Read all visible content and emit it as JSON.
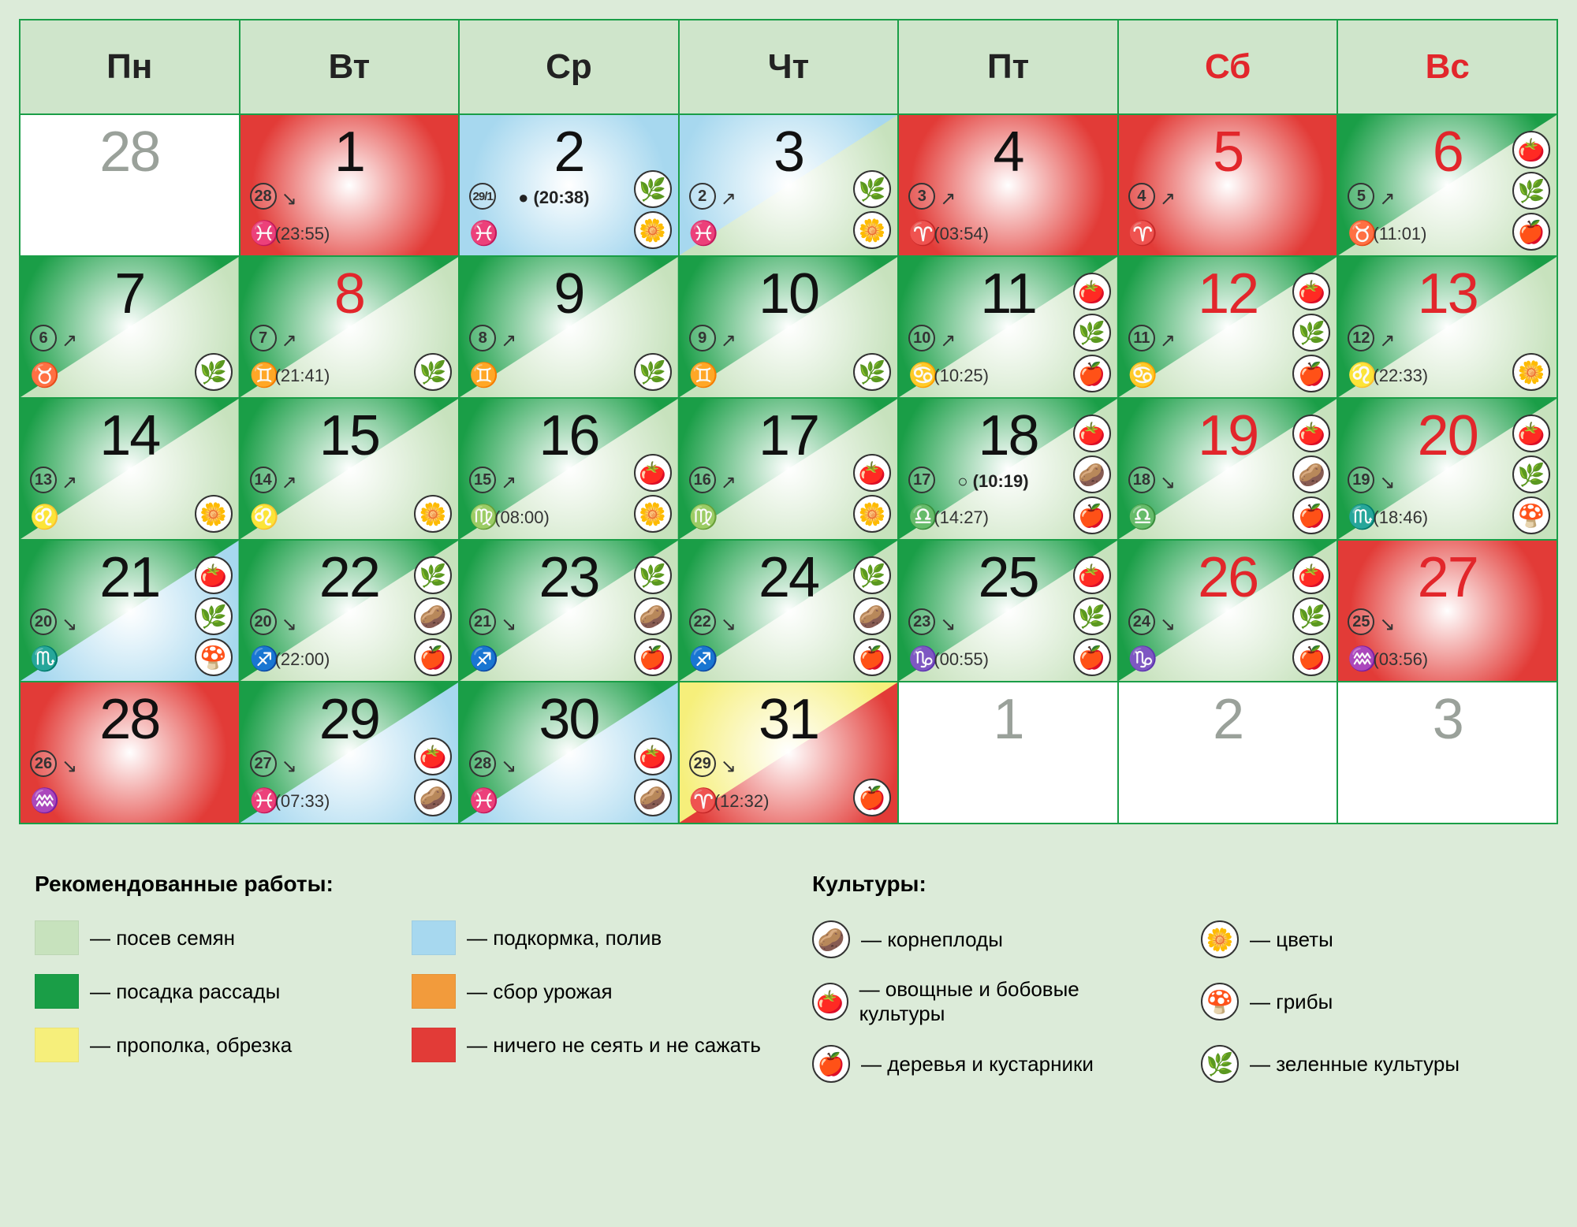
{
  "colors": {
    "border": "#1a9e47",
    "header_bg": "#cfe5cb",
    "weekend": "#e2262b",
    "bg_page": "#dcebd9",
    "seed": "#c7e2bd",
    "seedling": "#1a9e47",
    "weed": "#f6ef7b",
    "feed": "#a7d8ef",
    "harvest": "#f29b3c",
    "noplant": "#e23b37"
  },
  "weekdays": [
    {
      "label": "Пн",
      "weekend": false
    },
    {
      "label": "Вт",
      "weekend": false
    },
    {
      "label": "Ср",
      "weekend": false
    },
    {
      "label": "Чт",
      "weekend": false
    },
    {
      "label": "Пт",
      "weekend": false
    },
    {
      "label": "Сб",
      "weekend": true
    },
    {
      "label": "Вс",
      "weekend": true
    }
  ],
  "crops": {
    "root": "🥔",
    "veg": "🍅",
    "tree": "🍎",
    "flower": "🌼",
    "mushroom": "🍄",
    "greens": "🌿"
  },
  "zodiac_glyphs": {
    "aries": "♈",
    "taurus": "♉",
    "gemini": "♊",
    "cancer": "♋",
    "leo": "♌",
    "virgo": "♍",
    "libra": "♎",
    "scorpio": "♏",
    "sagittarius": "♐",
    "capricorn": "♑",
    "aquarius": "♒",
    "pisces": "♓"
  },
  "cells": [
    {
      "day": "28",
      "grey": true,
      "blank": true
    },
    {
      "day": "1",
      "bg_upper": "noplant",
      "bg_lower": "noplant",
      "radial": true,
      "moonday": "28",
      "arrow": "↘",
      "zodiac": "pisces",
      "ztime": "(23:55)"
    },
    {
      "day": "2",
      "bg_upper": "feed",
      "bg_lower": "feed",
      "radial": true,
      "moonday": "29/1",
      "moonsmall": true,
      "arrow": "",
      "phase": "● (20:38)",
      "zodiac": "pisces",
      "icons": [
        "greens",
        "flower"
      ]
    },
    {
      "day": "3",
      "bg_upper": "feed",
      "bg_lower": "seed",
      "moonday": "2",
      "arrow": "↗",
      "zodiac": "pisces",
      "icons": [
        "greens",
        "flower"
      ]
    },
    {
      "day": "4",
      "bg_upper": "noplant",
      "bg_lower": "noplant",
      "radial": true,
      "moonday": "3",
      "arrow": "↗",
      "zodiac": "aries",
      "ztime": "(03:54)"
    },
    {
      "day": "5",
      "red": true,
      "bg_upper": "noplant",
      "bg_lower": "noplant",
      "radial": true,
      "moonday": "4",
      "arrow": "↗",
      "zodiac": "aries"
    },
    {
      "day": "6",
      "red": true,
      "bg_upper": "seedling",
      "bg_lower": "seed",
      "moonday": "5",
      "arrow": "↗",
      "zodiac": "taurus",
      "ztime": "(11:01)",
      "icons": [
        "veg",
        "greens",
        "tree"
      ]
    },
    {
      "day": "7",
      "bg_upper": "seedling",
      "bg_lower": "seed",
      "moonday": "6",
      "arrow": "↗",
      "zodiac": "taurus",
      "icons": [
        "greens"
      ]
    },
    {
      "day": "8",
      "red": true,
      "bg_upper": "seedling",
      "bg_lower": "seed",
      "moonday": "7",
      "arrow": "↗",
      "zodiac": "gemini",
      "ztime": "(21:41)",
      "icons": [
        "greens"
      ]
    },
    {
      "day": "9",
      "bg_upper": "seedling",
      "bg_lower": "seed",
      "moonday": "8",
      "arrow": "↗",
      "zodiac": "gemini",
      "icons": [
        "greens"
      ]
    },
    {
      "day": "10",
      "bg_upper": "seedling",
      "bg_lower": "seed",
      "moonday": "9",
      "arrow": "↗",
      "zodiac": "gemini",
      "icons": [
        "greens"
      ]
    },
    {
      "day": "11",
      "bg_upper": "seedling",
      "bg_lower": "seed",
      "moonday": "10",
      "arrow": "↗",
      "zodiac": "cancer",
      "ztime": "(10:25)",
      "icons": [
        "veg",
        "greens",
        "tree"
      ]
    },
    {
      "day": "12",
      "red": true,
      "bg_upper": "seedling",
      "bg_lower": "seed",
      "moonday": "11",
      "arrow": "↗",
      "zodiac": "cancer",
      "icons": [
        "veg",
        "greens",
        "tree"
      ]
    },
    {
      "day": "13",
      "red": true,
      "bg_upper": "seedling",
      "bg_lower": "seed",
      "moonday": "12",
      "arrow": "↗",
      "zodiac": "leo",
      "ztime": "(22:33)",
      "icons": [
        "flower"
      ]
    },
    {
      "day": "14",
      "bg_upper": "seedling",
      "bg_lower": "seed",
      "moonday": "13",
      "arrow": "↗",
      "zodiac": "leo",
      "icons": [
        "flower"
      ]
    },
    {
      "day": "15",
      "bg_upper": "seedling",
      "bg_lower": "seed",
      "moonday": "14",
      "arrow": "↗",
      "zodiac": "leo",
      "icons": [
        "flower"
      ]
    },
    {
      "day": "16",
      "bg_upper": "seedling",
      "bg_lower": "seed",
      "moonday": "15",
      "arrow": "↗",
      "zodiac": "virgo",
      "ztime": "(08:00)",
      "icons": [
        "veg",
        "flower"
      ]
    },
    {
      "day": "17",
      "bg_upper": "seedling",
      "bg_lower": "seed",
      "moonday": "16",
      "arrow": "↗",
      "zodiac": "virgo",
      "icons": [
        "veg",
        "flower"
      ]
    },
    {
      "day": "18",
      "bg_upper": "seedling",
      "bg_lower": "seed",
      "moonday": "17",
      "arrow": "",
      "phase": "○ (10:19)",
      "zodiac": "libra",
      "ztime": "(14:27)",
      "icons": [
        "veg",
        "root",
        "tree"
      ]
    },
    {
      "day": "19",
      "red": true,
      "bg_upper": "seedling",
      "bg_lower": "seed",
      "moonday": "18",
      "arrow": "↘",
      "zodiac": "libra",
      "icons": [
        "veg",
        "root",
        "tree"
      ]
    },
    {
      "day": "20",
      "red": true,
      "bg_upper": "seedling",
      "bg_lower": "seed",
      "moonday": "19",
      "arrow": "↘",
      "zodiac": "scorpio",
      "ztime": "(18:46)",
      "icons": [
        "veg",
        "greens",
        "mushroom"
      ]
    },
    {
      "day": "21",
      "bg_upper": "seedling",
      "bg_lower": "feed",
      "moonday": "20",
      "arrow": "↘",
      "zodiac": "scorpio",
      "icons": [
        "veg",
        "greens",
        "mushroom"
      ]
    },
    {
      "day": "22",
      "bg_upper": "seedling",
      "bg_lower": "seed",
      "moonday": "20",
      "arrow": "↘",
      "zodiac": "sagittarius",
      "ztime": "(22:00)",
      "icons": [
        "greens",
        "root",
        "tree"
      ]
    },
    {
      "day": "23",
      "bg_upper": "seedling",
      "bg_lower": "seed",
      "moonday": "21",
      "arrow": "↘",
      "zodiac": "sagittarius",
      "icons": [
        "greens",
        "root",
        "tree"
      ]
    },
    {
      "day": "24",
      "bg_upper": "seedling",
      "bg_lower": "seed",
      "moonday": "22",
      "arrow": "↘",
      "zodiac": "sagittarius",
      "icons": [
        "greens",
        "root",
        "tree"
      ]
    },
    {
      "day": "25",
      "bg_upper": "seedling",
      "bg_lower": "seed",
      "moonday": "23",
      "arrow": "↘",
      "zodiac": "capricorn",
      "ztime": "(00:55)",
      "icons": [
        "veg",
        "greens",
        "tree"
      ]
    },
    {
      "day": "26",
      "red": true,
      "bg_upper": "seedling",
      "bg_lower": "seed",
      "moonday": "24",
      "arrow": "↘",
      "zodiac": "capricorn",
      "icons": [
        "veg",
        "greens",
        "tree"
      ]
    },
    {
      "day": "27",
      "red": true,
      "bg_upper": "noplant",
      "bg_lower": "noplant",
      "radial": true,
      "moonday": "25",
      "arrow": "↘",
      "zodiac": "aquarius",
      "ztime": "(03:56)"
    },
    {
      "day": "28",
      "bg_upper": "noplant",
      "bg_lower": "noplant",
      "radial": true,
      "moonday": "26",
      "arrow": "↘",
      "zodiac": "aquarius"
    },
    {
      "day": "29",
      "bg_upper": "seedling",
      "bg_lower": "feed",
      "moonday": "27",
      "arrow": "↘",
      "zodiac": "pisces",
      "ztime": "(07:33)",
      "icons": [
        "veg",
        "root"
      ]
    },
    {
      "day": "30",
      "bg_upper": "seedling",
      "bg_lower": "feed",
      "moonday": "28",
      "arrow": "↘",
      "zodiac": "pisces",
      "icons": [
        "veg",
        "root"
      ]
    },
    {
      "day": "31",
      "bg_upper": "weed",
      "bg_lower": "noplant",
      "moonday": "29",
      "arrow": "↘",
      "zodiac": "aries",
      "ztime": "(12:32)",
      "icons": [
        "tree"
      ]
    },
    {
      "day": "1",
      "grey": true,
      "blank": true
    },
    {
      "day": "2",
      "grey": true,
      "blank": true
    },
    {
      "day": "3",
      "grey": true,
      "blank": true
    }
  ],
  "legend": {
    "works_title": "Рекомендованные работы:",
    "crops_title": "Культуры:",
    "works": [
      {
        "color": "seed",
        "label": "— посев семян"
      },
      {
        "color": "feed",
        "label": "— подкормка, полив"
      },
      {
        "color": "seedling",
        "label": "— посадка рассады"
      },
      {
        "color": "harvest",
        "label": "— сбор урожая"
      },
      {
        "color": "weed",
        "label": "— прополка, обрезка"
      },
      {
        "color": "noplant",
        "label": "— ничего не сеять и не сажать"
      }
    ],
    "crops": [
      {
        "key": "root",
        "label": "— корнеплоды"
      },
      {
        "key": "flower",
        "label": "— цветы"
      },
      {
        "key": "veg",
        "label": "— овощные и бобовые культуры"
      },
      {
        "key": "mushroom",
        "label": "— грибы"
      },
      {
        "key": "tree",
        "label": "— деревья и кустарники"
      },
      {
        "key": "greens",
        "label": "— зеленные культуры"
      }
    ]
  }
}
